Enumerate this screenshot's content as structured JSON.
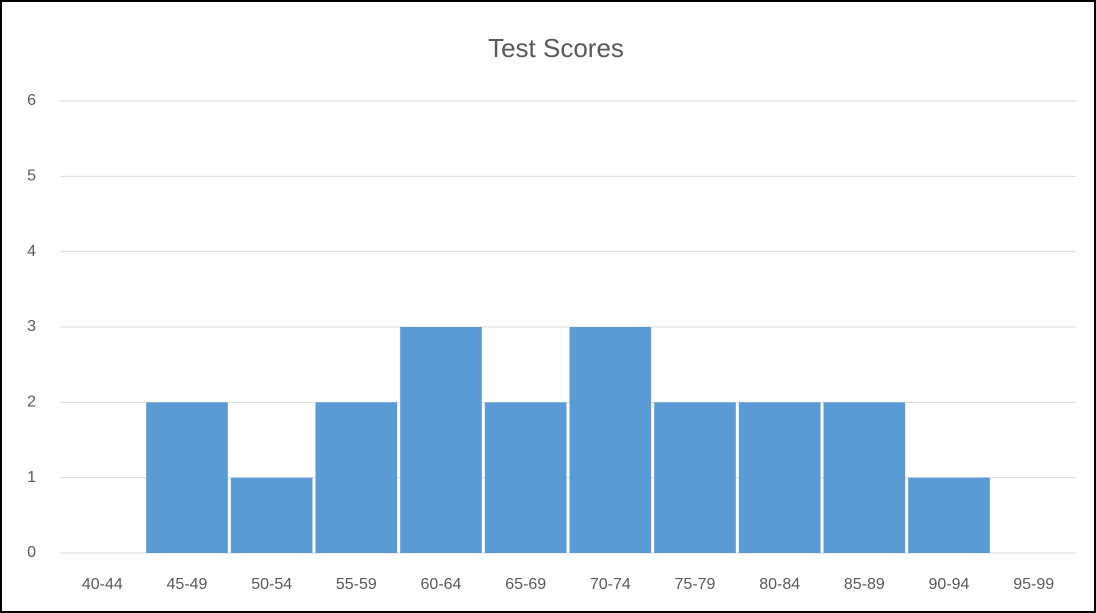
{
  "chart_data": {
    "type": "bar",
    "title": "Test Scores",
    "categories": [
      "40-44",
      "45-49",
      "50-54",
      "55-59",
      "60-64",
      "65-69",
      "70-74",
      "75-79",
      "80-84",
      "85-89",
      "90-94",
      "95-99"
    ],
    "values": [
      0,
      2,
      1,
      2,
      3,
      2,
      3,
      2,
      2,
      2,
      1,
      0
    ],
    "color": "#5b9bd5",
    "ylim": [
      0,
      6
    ],
    "yticks": [
      0,
      1,
      2,
      3,
      4,
      5,
      6
    ],
    "grid": true
  }
}
